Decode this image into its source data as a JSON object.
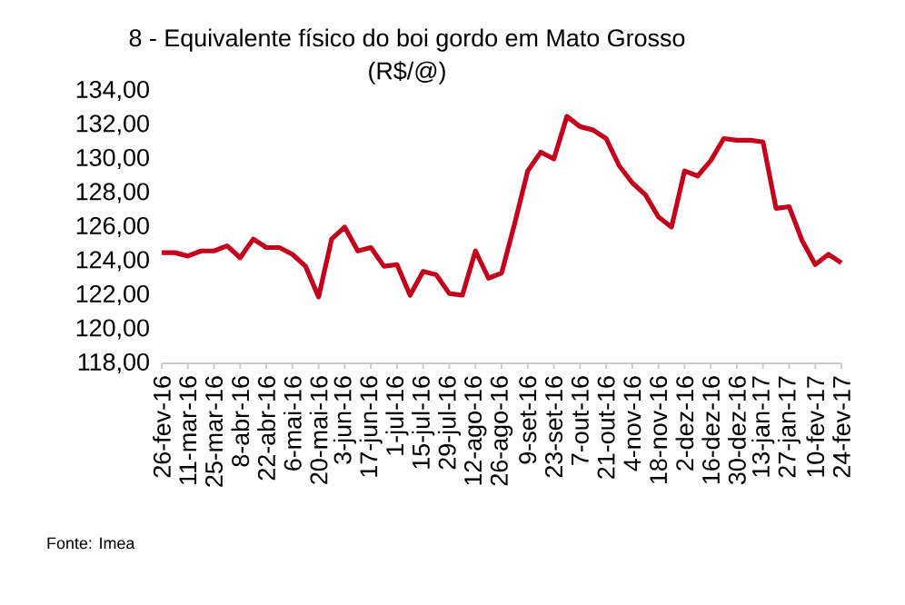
{
  "chart_data": {
    "type": "line",
    "title": "8 - Equivalente físico do boi gordo em Mato Grosso",
    "subtitle": "(R$/@)",
    "categories": [
      "26-fev-16",
      null,
      "11-mar-16",
      null,
      "25-mar-16",
      null,
      "8-abr-16",
      null,
      "22-abr-16",
      null,
      "6-mai-16",
      null,
      "20-mai-16",
      null,
      "3-jun-16",
      null,
      "17-jun-16",
      null,
      "1-jul-16",
      null,
      "15-jul-16",
      null,
      "29-jul-16",
      null,
      "12-ago-16",
      null,
      "26-ago-16",
      null,
      "9-set-16",
      null,
      "23-set-16",
      null,
      "7-out-16",
      null,
      "21-out-16",
      null,
      "4-nov-16",
      null,
      "18-nov-16",
      null,
      "2-dez-16",
      null,
      "16-dez-16",
      null,
      "30-dez-16",
      null,
      "13-jan-17",
      null,
      "27-jan-17",
      null,
      "10-fev-17",
      null,
      "24-fev-17"
    ],
    "series": [
      {
        "color": "#c4001a",
        "values": [
          124.5,
          124.5,
          124.3,
          124.6,
          124.6,
          124.9,
          124.2,
          125.3,
          124.8,
          124.8,
          124.4,
          123.7,
          121.9,
          125.3,
          126.0,
          124.6,
          124.8,
          123.7,
          123.8,
          122.0,
          123.4,
          123.2,
          122.1,
          122.0,
          124.6,
          123.0,
          123.3,
          126.2,
          129.3,
          130.4,
          130.0,
          132.5,
          131.9,
          131.7,
          131.2,
          129.6,
          128.6,
          127.9,
          126.6,
          126.0,
          129.3,
          129.0,
          129.9,
          131.2,
          131.1,
          131.1,
          131.0,
          127.1,
          127.2,
          125.2,
          123.8,
          124.4,
          123.9
        ]
      }
    ],
    "ylim": [
      118,
      134
    ],
    "yticks": [
      {
        "value": 118,
        "label": "118,00"
      },
      {
        "value": 120,
        "label": "120,00"
      },
      {
        "value": 122,
        "label": "122,00"
      },
      {
        "value": 124,
        "label": "124,00"
      },
      {
        "value": 126,
        "label": "126,00"
      },
      {
        "value": 128,
        "label": "128,00"
      },
      {
        "value": 130,
        "label": "130,00"
      },
      {
        "value": 132,
        "label": "132,00"
      },
      {
        "value": 134,
        "label": "134,00"
      }
    ],
    "grid": false,
    "marker": "none",
    "line_style": "solid",
    "annotations": [
      "Fonte: Imea"
    ]
  }
}
